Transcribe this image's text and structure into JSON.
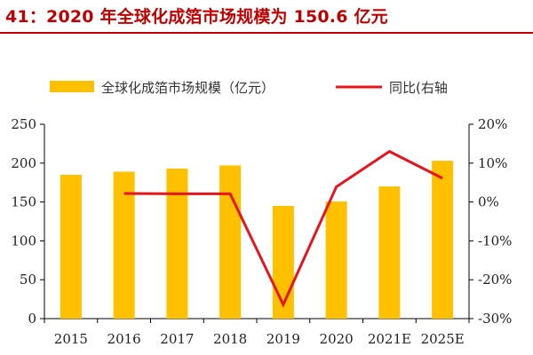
{
  "header": {
    "title": "41：2020 年全球化成箔市场规模为 150.6 亿元"
  },
  "chart_data": {
    "type": "bar+line",
    "categories": [
      "2015",
      "2016",
      "2017",
      "2018",
      "2019",
      "2020",
      "2021E",
      "2025E"
    ],
    "series": [
      {
        "name": "全球化成箔市场规模（亿元）",
        "type": "bar",
        "axis": "left",
        "color": "#ffc000",
        "values": [
          185,
          189,
          193,
          197,
          145,
          150.6,
          170,
          203
        ]
      },
      {
        "name": "同比(右轴",
        "type": "line",
        "axis": "right",
        "color": "#e8141c",
        "values": [
          null,
          2.2,
          2.1,
          2.1,
          -26.4,
          3.9,
          13.0,
          6.1
        ]
      }
    ],
    "left_axis": {
      "min": 0,
      "max": 250,
      "ticks": [
        0,
        50,
        100,
        150,
        200,
        250
      ]
    },
    "right_axis": {
      "min": -30,
      "max": 20,
      "ticks": [
        -30,
        -20,
        -10,
        0,
        10,
        20
      ],
      "tick_labels": [
        "-30%",
        "-20%",
        "-10%",
        "0%",
        "10%",
        "20%"
      ]
    },
    "legend_position": "top",
    "grid": false
  }
}
